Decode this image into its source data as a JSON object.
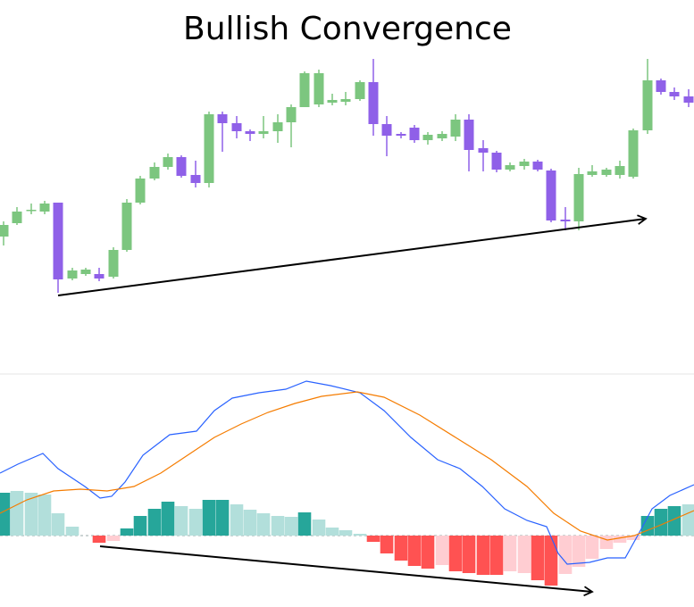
{
  "chart_data": [
    {
      "type": "candlestick",
      "title": "Bullish Convergence",
      "up_color": "#7cc67f",
      "down_color": "#8f60e8",
      "xlim": [
        0,
        777
      ],
      "ylim": [
        0,
        400
      ],
      "x": [
        4,
        19,
        35,
        50,
        65,
        81,
        96,
        111,
        127,
        142,
        157,
        173,
        188,
        203,
        219,
        234,
        249,
        265,
        280,
        295,
        311,
        326,
        341,
        357,
        372,
        387,
        403,
        418,
        433,
        449,
        464,
        479,
        495,
        510,
        525,
        541,
        556,
        571,
        587,
        602,
        617,
        633,
        648,
        663,
        679,
        694,
        709,
        725,
        740,
        755,
        771
      ],
      "open": [
        135,
        150,
        164,
        163,
        173,
        88,
        93,
        93,
        90,
        120,
        173,
        200,
        213,
        224,
        204,
        195,
        272,
        262,
        253,
        250,
        253,
        263,
        280,
        283,
        285,
        286,
        289,
        308,
        261,
        250,
        257,
        243,
        245,
        247,
        266,
        234,
        229,
        210,
        214,
        219,
        209,
        154,
        152,
        204,
        204,
        204,
        202,
        254,
        310,
        297,
        292
      ],
      "high": [
        152,
        168,
        172,
        175,
        173,
        100,
        100,
        100,
        123,
        177,
        203,
        218,
        228,
        226,
        220,
        275,
        275,
        270,
        255,
        270,
        272,
        283,
        320,
        322,
        295,
        297,
        310,
        334,
        270,
        252,
        260,
        252,
        253,
        272,
        272,
        243,
        231,
        218,
        222,
        221,
        211,
        168,
        212,
        215,
        212,
        220,
        256,
        334,
        312,
        302,
        300
      ],
      "low": [
        125,
        148,
        160,
        160,
        72,
        86,
        91,
        85,
        88,
        118,
        171,
        198,
        210,
        201,
        190,
        190,
        230,
        245,
        242,
        245,
        240,
        235,
        280,
        280,
        282,
        282,
        287,
        248,
        225,
        245,
        240,
        238,
        242,
        242,
        208,
        208,
        207,
        208,
        210,
        208,
        151,
        142,
        142,
        202,
        202,
        200,
        200,
        250,
        294,
        288,
        280
      ],
      "close": [
        148,
        163,
        165,
        172,
        87,
        97,
        98,
        88,
        120,
        173,
        200,
        213,
        224,
        203,
        195,
        272,
        262,
        253,
        250,
        253,
        263,
        280,
        318,
        318,
        288,
        289,
        308,
        261,
        248,
        248,
        243,
        249,
        250,
        266,
        232,
        229,
        210,
        215,
        219,
        210,
        153,
        152,
        205,
        208,
        210,
        214,
        254,
        310,
        297,
        292,
        285
      ]
    },
    {
      "type": "macd",
      "xlim": [
        0,
        777
      ],
      "ylim": [
        -80,
        180
      ],
      "x": [
        4,
        19,
        35,
        50,
        65,
        81,
        96,
        111,
        127,
        142,
        157,
        173,
        188,
        203,
        219,
        234,
        249,
        265,
        280,
        295,
        311,
        326,
        341,
        357,
        372,
        387,
        403,
        418,
        433,
        449,
        464,
        479,
        495,
        510,
        525,
        541,
        556,
        571,
        587,
        602,
        617,
        633,
        648,
        663,
        679,
        694,
        709,
        725,
        740,
        755,
        771
      ],
      "histogram": {
        "values": [
          48,
          50,
          48,
          46,
          25,
          10,
          0,
          -8,
          -6,
          8,
          22,
          30,
          38,
          33,
          30,
          40,
          40,
          35,
          29,
          25,
          22,
          21,
          26,
          18,
          9,
          6,
          2,
          -7,
          -20,
          -28,
          -34,
          -37,
          -33,
          -40,
          -42,
          -44,
          -44,
          -40,
          -42,
          -50,
          -56,
          -43,
          -35,
          -26,
          -15,
          -8,
          -5,
          22,
          30,
          33,
          35
        ],
        "colors": [
          "#26a69a",
          "#b2dfdb",
          "#b2dfdb",
          "#b2dfdb",
          "#b2dfdb",
          "#b2dfdb",
          "#b2dfdb",
          "#ff5252",
          "#ffcdd2",
          "#26a69a",
          "#26a69a",
          "#26a69a",
          "#26a69a",
          "#b2dfdb",
          "#b2dfdb",
          "#26a69a",
          "#26a69a",
          "#b2dfdb",
          "#b2dfdb",
          "#b2dfdb",
          "#b2dfdb",
          "#b2dfdb",
          "#26a69a",
          "#b2dfdb",
          "#b2dfdb",
          "#b2dfdb",
          "#b2dfdb",
          "#ff5252",
          "#ff5252",
          "#ff5252",
          "#ff5252",
          "#ff5252",
          "#ffcdd2",
          "#ff5252",
          "#ff5252",
          "#ff5252",
          "#ff5252",
          "#ffcdd2",
          "#ffcdd2",
          "#ff5252",
          "#ff5252",
          "#ffcdd2",
          "#ffcdd2",
          "#ffcdd2",
          "#ffcdd2",
          "#ffcdd2",
          "#ffcdd2",
          "#26a69a",
          "#26a69a",
          "#26a69a",
          "#b2dfdb"
        ]
      },
      "series": [
        {
          "color": "#2962ff",
          "x": [
            0,
            20,
            48,
            65,
            80,
            95,
            112,
            125,
            140,
            160,
            190,
            220,
            240,
            260,
            290,
            320,
            343,
            370,
            403,
            430,
            460,
            490,
            515,
            540,
            565,
            590,
            612,
            625,
            635,
            660,
            680,
            700,
            715,
            730,
            750,
            777
          ],
          "values": [
            70,
            80,
            92,
            75,
            65,
            55,
            42,
            44,
            60,
            90,
            113,
            117,
            140,
            154,
            160,
            164,
            173,
            168,
            160,
            140,
            110,
            85,
            75,
            55,
            30,
            17,
            10,
            -20,
            -32,
            -30,
            -25,
            -25,
            2,
            30,
            45,
            57
          ]
        },
        {
          "color": "#f57c00",
          "x": [
            0,
            30,
            60,
            90,
            120,
            150,
            180,
            210,
            240,
            270,
            300,
            330,
            360,
            400,
            430,
            470,
            510,
            550,
            590,
            620,
            650,
            680,
            710,
            740,
            777
          ],
          "values": [
            25,
            40,
            50,
            52,
            50,
            55,
            70,
            90,
            110,
            125,
            138,
            148,
            156,
            161,
            155,
            135,
            110,
            85,
            55,
            25,
            5,
            -5,
            0,
            12,
            28
          ]
        }
      ]
    }
  ]
}
